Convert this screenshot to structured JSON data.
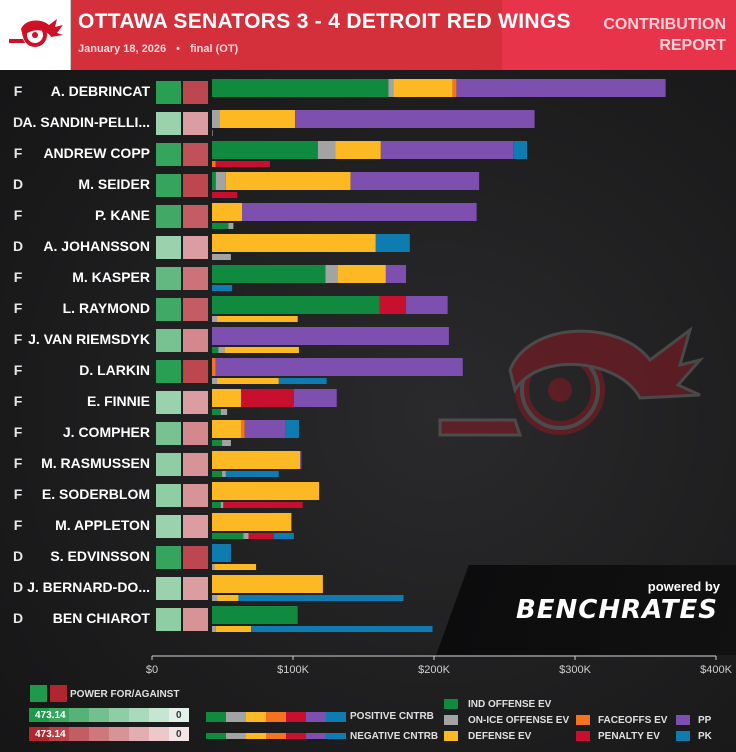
{
  "header": {
    "title": "OTTAWA SENATORS 3 - 4 DETROIT RED WINGS",
    "date": "January 18, 2026",
    "separator": "•",
    "status": "final (OT)",
    "report_line1": "CONTRIBUTION",
    "report_line2": "REPORT"
  },
  "colors": {
    "ind_offense": "#0f8a3f",
    "on_ice_offense": "#a3a3a3",
    "defense": "#fdb924",
    "faceoffs": "#f37321",
    "penalty": "#c8102e",
    "pp": "#7d4fae",
    "pk": "#0e7cb1",
    "power_for": "#1e9a4a",
    "power_against": "#b0262f"
  },
  "chart_data": {
    "type": "bar",
    "title": "Contribution Report",
    "xlabel": "",
    "ylabel": "",
    "xlim": [
      0,
      400000
    ],
    "x_ticks": [
      "$0",
      "$100K",
      "$200K",
      "$300K",
      "$400K"
    ],
    "x_tick_values": [
      0,
      100000,
      200000,
      300000,
      400000
    ],
    "series_names": [
      "IND OFFENSE EV",
      "ON-ICE OFFENSE EV",
      "DEFENSE EV",
      "FACEOFFS EV",
      "PENALTY EV",
      "PP",
      "PK"
    ],
    "players": [
      {
        "pos": "F",
        "name": "A. DEBRINCAT",
        "power": [
          0.95,
          0.85
        ],
        "positive": [
          140000,
          4000,
          47000,
          3000,
          0,
          166000,
          0
        ],
        "negative": [
          0,
          0,
          0,
          0,
          0,
          0,
          0
        ]
      },
      {
        "pos": "D",
        "name": "A. SANDIN-PELLI...",
        "power": [
          0.45,
          0.45
        ],
        "positive": [
          0,
          6000,
          60000,
          0,
          0,
          190000,
          0
        ],
        "negative": [
          0,
          500,
          0,
          0,
          0,
          0,
          0
        ]
      },
      {
        "pos": "F",
        "name": "ANDREW COPP",
        "power": [
          0.9,
          0.8
        ],
        "positive": [
          84000,
          14000,
          36000,
          0,
          0,
          105000,
          11000
        ],
        "negative": [
          0,
          0,
          0,
          3000,
          43000,
          0,
          0
        ]
      },
      {
        "pos": "D",
        "name": "M. SEIDER",
        "power": [
          0.9,
          0.85
        ],
        "positive": [
          3000,
          8000,
          99000,
          0,
          0,
          102000,
          0
        ],
        "negative": [
          0,
          0,
          0,
          0,
          20000,
          0,
          0
        ]
      },
      {
        "pos": "F",
        "name": "P. KANE",
        "power": [
          0.85,
          0.75
        ],
        "positive": [
          0,
          0,
          24000,
          0,
          0,
          186000,
          0
        ],
        "negative": [
          13000,
          4000,
          0,
          0,
          0,
          0,
          0
        ]
      },
      {
        "pos": "D",
        "name": "A. JOHANSSON",
        "power": [
          0.45,
          0.45
        ],
        "positive": [
          0,
          0,
          130000,
          0,
          0,
          0,
          27000
        ],
        "negative": [
          0,
          15000,
          0,
          0,
          0,
          0,
          0
        ]
      },
      {
        "pos": "F",
        "name": "M. KASPER",
        "power": [
          0.7,
          0.65
        ],
        "positive": [
          90000,
          10000,
          38000,
          0,
          0,
          16000,
          0
        ],
        "negative": [
          0,
          0,
          0,
          0,
          0,
          0,
          16000
        ]
      },
      {
        "pos": "F",
        "name": "L. RAYMOND",
        "power": [
          0.85,
          0.75
        ],
        "positive": [
          133000,
          0,
          0,
          0,
          21000,
          33000,
          0
        ],
        "negative": [
          0,
          4000,
          64000,
          0,
          0,
          0,
          0
        ]
      },
      {
        "pos": "F",
        "name": "J. VAN RIEMSDYK",
        "power": [
          0.6,
          0.55
        ],
        "positive": [
          0,
          0,
          0,
          0,
          0,
          188000,
          0
        ],
        "negative": [
          5000,
          5000,
          59000,
          0,
          0,
          0,
          0
        ]
      },
      {
        "pos": "F",
        "name": "D. LARKIN",
        "power": [
          0.95,
          0.85
        ],
        "positive": [
          0,
          0,
          0,
          3000,
          0,
          196000,
          0
        ],
        "negative": [
          0,
          4000,
          49000,
          0,
          0,
          0,
          38000
        ]
      },
      {
        "pos": "F",
        "name": "E. FINNIE",
        "power": [
          0.45,
          0.45
        ],
        "positive": [
          0,
          0,
          23000,
          0,
          42000,
          34000,
          0
        ],
        "negative": [
          7000,
          5000,
          0,
          0,
          0,
          0,
          0
        ]
      },
      {
        "pos": "F",
        "name": "J. COMPHER",
        "power": [
          0.6,
          0.55
        ],
        "positive": [
          0,
          0,
          23000,
          3000,
          0,
          32000,
          11000
        ],
        "negative": [
          8000,
          7000,
          0,
          0,
          0,
          0,
          0
        ]
      },
      {
        "pos": "F",
        "name": "M. RASMUSSEN",
        "power": [
          0.5,
          0.5
        ],
        "positive": [
          0,
          0,
          70000,
          0,
          0,
          1000,
          0
        ],
        "negative": [
          8000,
          3000,
          0,
          0,
          0,
          0,
          42000
        ]
      },
      {
        "pos": "F",
        "name": "E. SODERBLOM",
        "power": [
          0.5,
          0.5
        ],
        "positive": [
          0,
          0,
          85000,
          0,
          0,
          0,
          0
        ],
        "negative": [
          7000,
          2000,
          0,
          0,
          63000,
          0,
          0
        ]
      },
      {
        "pos": "F",
        "name": "M. APPLETON",
        "power": [
          0.45,
          0.45
        ],
        "positive": [
          0,
          0,
          63000,
          0,
          0,
          0,
          0
        ],
        "negative": [
          25000,
          4000,
          0,
          0,
          20000,
          0,
          16000
        ]
      },
      {
        "pos": "D",
        "name": "S. EDVINSSON",
        "power": [
          0.9,
          0.85
        ],
        "positive": [
          0,
          0,
          0,
          0,
          0,
          0,
          15000
        ],
        "negative": [
          0,
          2000,
          33000,
          0,
          0,
          0,
          0
        ]
      },
      {
        "pos": "D",
        "name": "J. BERNARD-DO...",
        "power": [
          0.45,
          0.45
        ],
        "positive": [
          0,
          0,
          88000,
          0,
          0,
          0,
          0
        ],
        "negative": [
          0,
          4000,
          17000,
          0,
          0,
          0,
          131000
        ]
      },
      {
        "pos": "D",
        "name": "BEN CHIAROT",
        "power": [
          0.5,
          0.5
        ],
        "positive": [
          68000,
          0,
          0,
          0,
          0,
          0,
          0
        ],
        "negative": [
          0,
          3000,
          28000,
          0,
          0,
          0,
          144000
        ]
      }
    ]
  },
  "legend": {
    "power_label": "POWER FOR/AGAINST",
    "power_for_value": "473.14",
    "power_against_value": "473.14",
    "power_zero": "0",
    "positive_label": "POSITIVE CNTRB",
    "negative_label": "NEGATIVE CNTRB",
    "ind_offense": "IND OFFENSE EV",
    "on_ice_offense": "ON-ICE OFFENSE EV",
    "defense": "DEFENSE EV",
    "faceoffs": "FACEOFFS EV",
    "penalty": "PENALTY EV",
    "pp": "PP",
    "pk": "PK"
  },
  "branding": {
    "powered_by": "powered by",
    "brand": "BENCHRATES"
  }
}
